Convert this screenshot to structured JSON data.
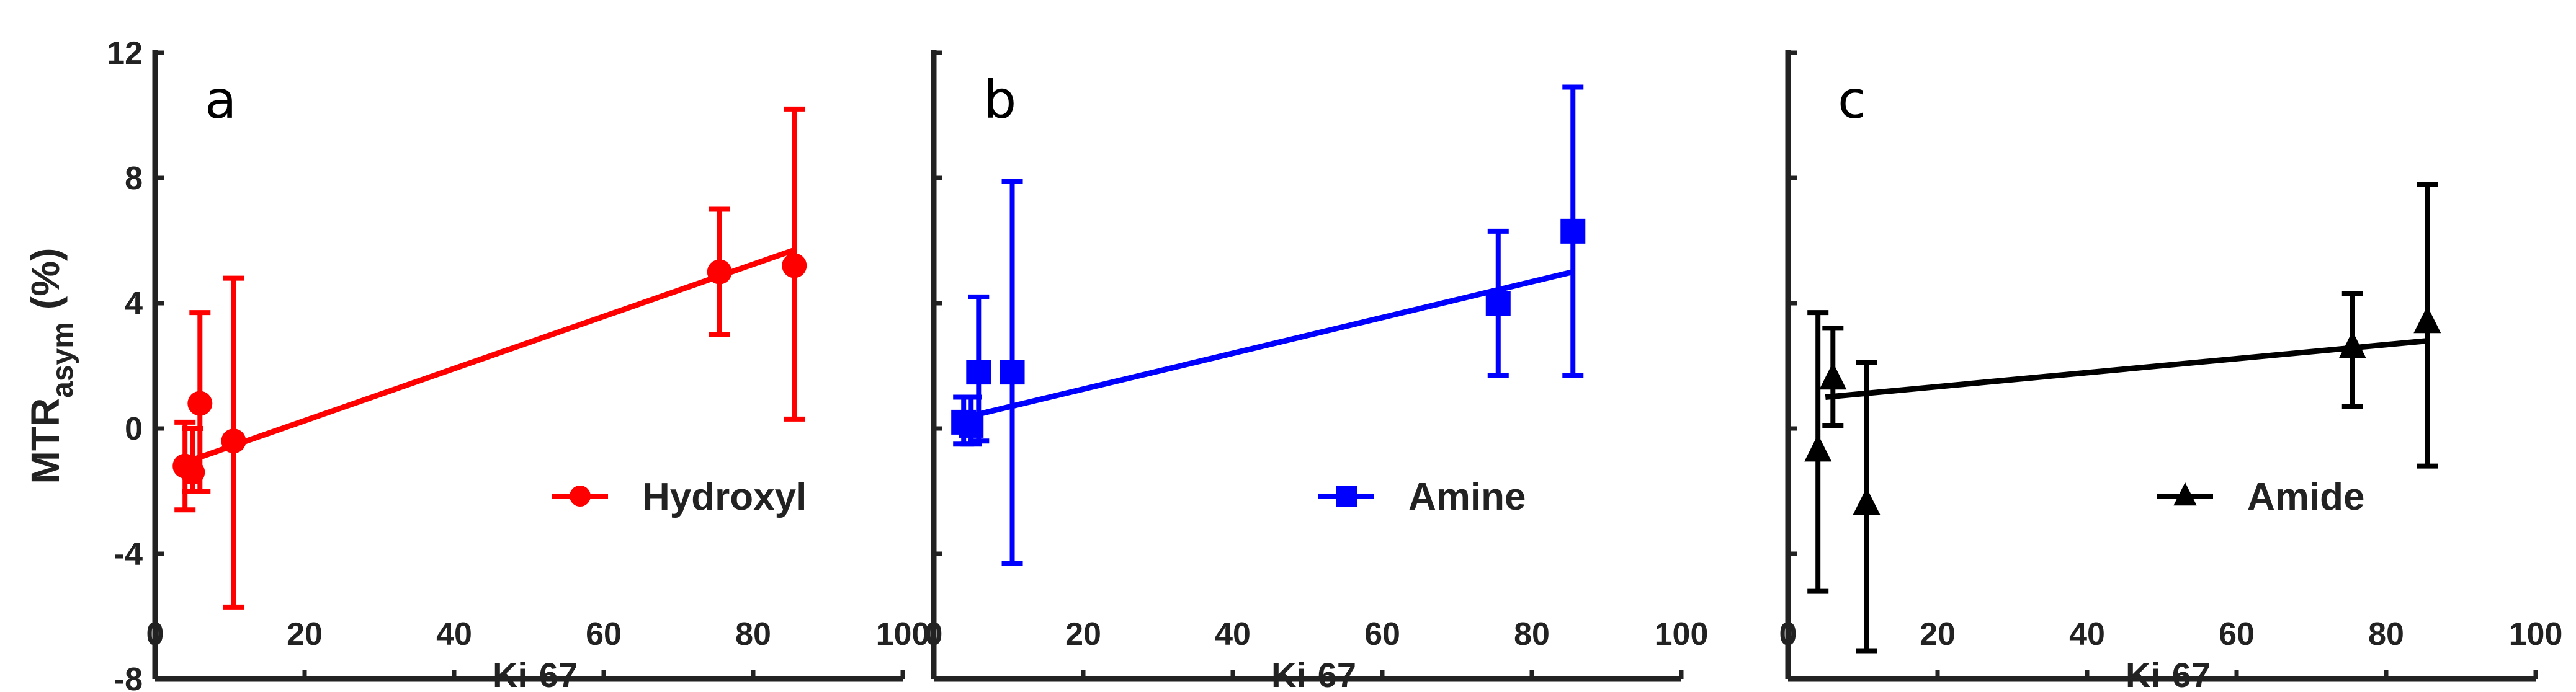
{
  "chart_data": [
    {
      "type": "scatter",
      "panel": "a",
      "series": [
        {
          "name": "Hydroxyl",
          "color": "#ff0000",
          "marker": "circle",
          "x": [
            4,
            5,
            6,
            10.5,
            75.5,
            85.5
          ],
          "y": [
            -1.2,
            -1.4,
            0.8,
            -0.4,
            5.0,
            5.2
          ],
          "err_low": [
            -2.6,
            -2.0,
            -2.0,
            -5.7,
            3.0,
            0.3
          ],
          "err_high": [
            0.2,
            0.0,
            3.7,
            4.8,
            7.0,
            10.2
          ],
          "fit": [
            [
              5,
              -1.0
            ],
            [
              85.5,
              5.7
            ]
          ]
        }
      ],
      "xlabel": "Ki-67",
      "ylabel": "MTR",
      "ylabel_sub": "asym",
      "ylabel_suffix": "(%)",
      "xlim": [
        0,
        100
      ],
      "ylim": [
        -8,
        12
      ],
      "xticks": [
        "0",
        "20",
        "40",
        "60",
        "80",
        "100"
      ],
      "yticks": [
        "-8",
        "-4",
        "0",
        "4",
        "8",
        "12"
      ],
      "legend": "bottom-right"
    },
    {
      "type": "scatter",
      "panel": "b",
      "series": [
        {
          "name": "Amine",
          "color": "#0000ff",
          "marker": "square",
          "x": [
            4,
            5,
            6,
            10.5,
            75.5,
            85.5
          ],
          "y": [
            0.2,
            0.1,
            1.8,
            1.8,
            4.0,
            6.3
          ],
          "err_low": [
            -0.5,
            -0.5,
            -0.4,
            -4.3,
            1.7,
            1.7
          ],
          "err_high": [
            1.0,
            1.0,
            4.2,
            7.9,
            6.3,
            10.9
          ],
          "fit": [
            [
              5,
              0.4
            ],
            [
              85.5,
              5.0
            ]
          ]
        }
      ],
      "xlabel": "Ki-67",
      "xlim": [
        0,
        100
      ],
      "ylim": [
        -8,
        12
      ],
      "xticks": [
        "0",
        "20",
        "40",
        "60",
        "80",
        "100"
      ],
      "legend": "bottom-right"
    },
    {
      "type": "scatter",
      "panel": "c",
      "series": [
        {
          "name": "Amide",
          "color": "#000000",
          "marker": "triangle",
          "x": [
            4,
            6,
            10.5,
            75.5,
            85.5
          ],
          "y": [
            -0.7,
            1.6,
            -2.4,
            2.6,
            3.4
          ],
          "err_low": [
            -5.2,
            0.1,
            -7.1,
            0.7,
            -1.2
          ],
          "err_high": [
            3.7,
            3.2,
            2.1,
            4.3,
            7.8
          ],
          "fit": [
            [
              5,
              1.0
            ],
            [
              85.5,
              2.8
            ]
          ]
        }
      ],
      "xlabel": "Ki-67",
      "xlim": [
        0,
        100
      ],
      "ylim": [
        -8,
        12
      ],
      "xticks": [
        "0",
        "20",
        "40",
        "60",
        "80",
        "100"
      ],
      "legend": "bottom-right"
    }
  ]
}
